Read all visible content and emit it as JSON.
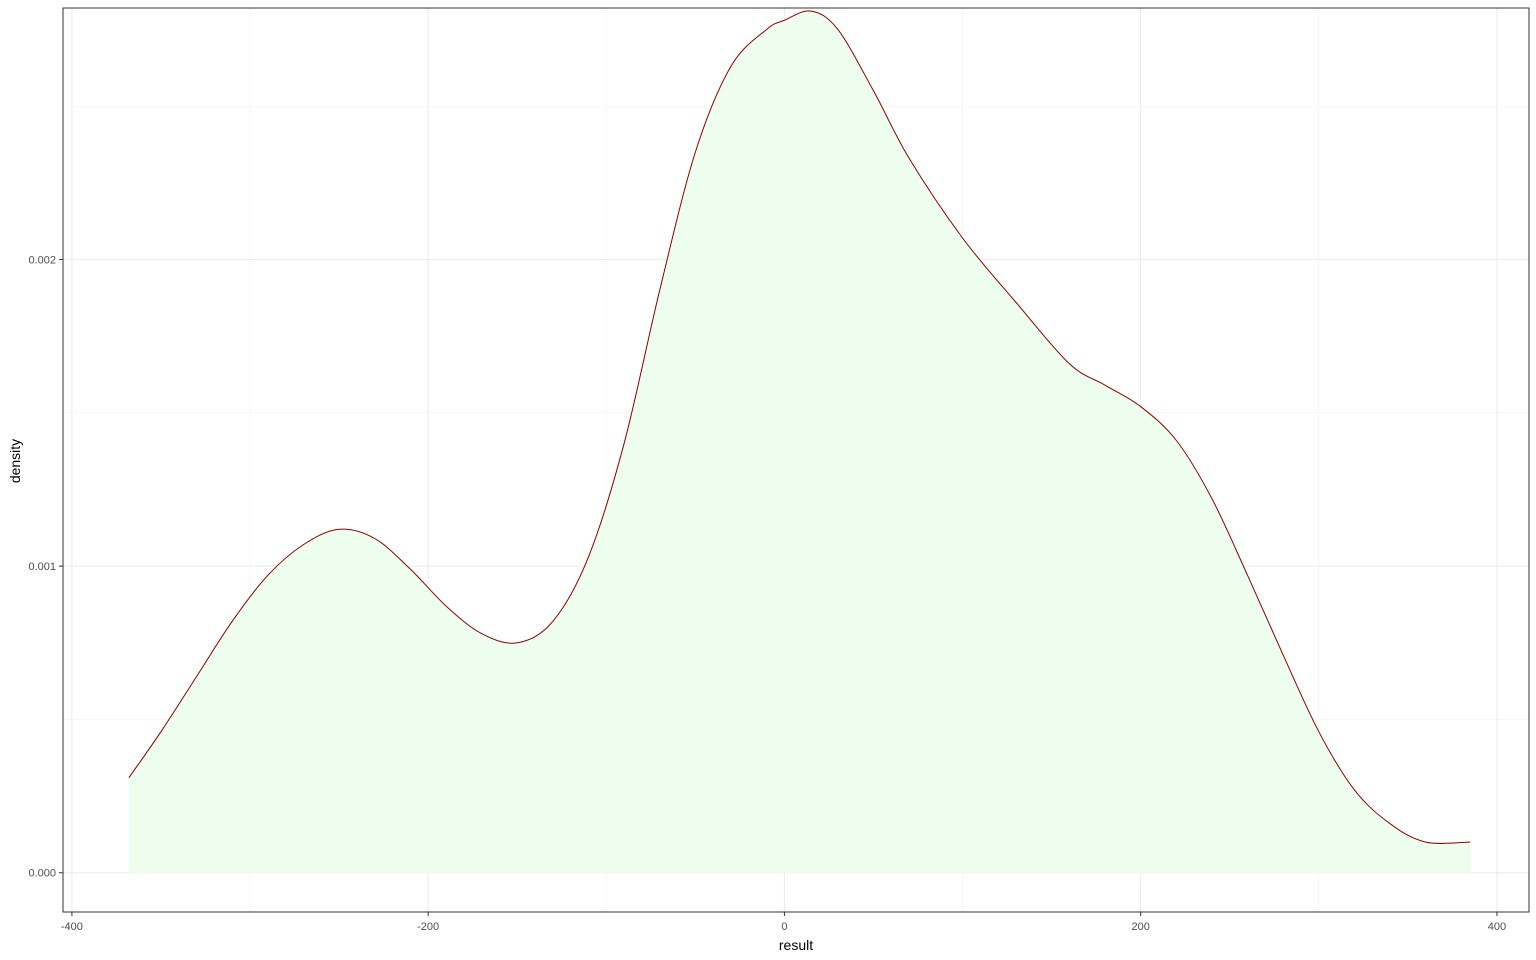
{
  "chart_data": {
    "type": "area",
    "title": "",
    "xlabel": "result",
    "ylabel": "density",
    "xlim": [
      -405,
      418
    ],
    "ylim": [
      -0.000128,
      0.00282
    ],
    "x_ticks": [
      -400,
      -200,
      0,
      200,
      400
    ],
    "x_tick_labels": [
      "-400",
      "-200",
      "0",
      "200",
      "400"
    ],
    "y_ticks": [
      0,
      0.001,
      0.002
    ],
    "y_tick_labels": [
      "0.000",
      "0.001",
      "0.002"
    ],
    "y_minor_ticks": [
      0.0005,
      0.0015,
      0.0025
    ],
    "x_minor_ticks": [
      -300,
      -100,
      100,
      300
    ],
    "grid": true,
    "series": [
      {
        "line_color": "#8b0000",
        "fill_color": "#eefeee",
        "x": [
          -368,
          -350,
          -330,
          -310,
          -290,
          -270,
          -250,
          -230,
          -210,
          -190,
          -170,
          -150,
          -130,
          -110,
          -90,
          -70,
          -50,
          -30,
          -10,
          0,
          15,
          30,
          50,
          70,
          100,
          130,
          160,
          180,
          200,
          220,
          240,
          260,
          280,
          300,
          320,
          340,
          360,
          385
        ],
        "y": [
          0.00031,
          0.00046,
          0.00064,
          0.00082,
          0.00097,
          0.00107,
          0.00112,
          0.00109,
          0.00099,
          0.00087,
          0.00078,
          0.00075,
          0.00082,
          0.00103,
          0.0014,
          0.0019,
          0.00235,
          0.00263,
          0.00275,
          0.00278,
          0.00281,
          0.00275,
          0.00255,
          0.00233,
          0.00207,
          0.00186,
          0.00166,
          0.00159,
          0.00152,
          0.00141,
          0.00122,
          0.00097,
          0.00071,
          0.00046,
          0.00027,
          0.00016,
          0.0001,
          0.0001
        ]
      }
    ]
  }
}
